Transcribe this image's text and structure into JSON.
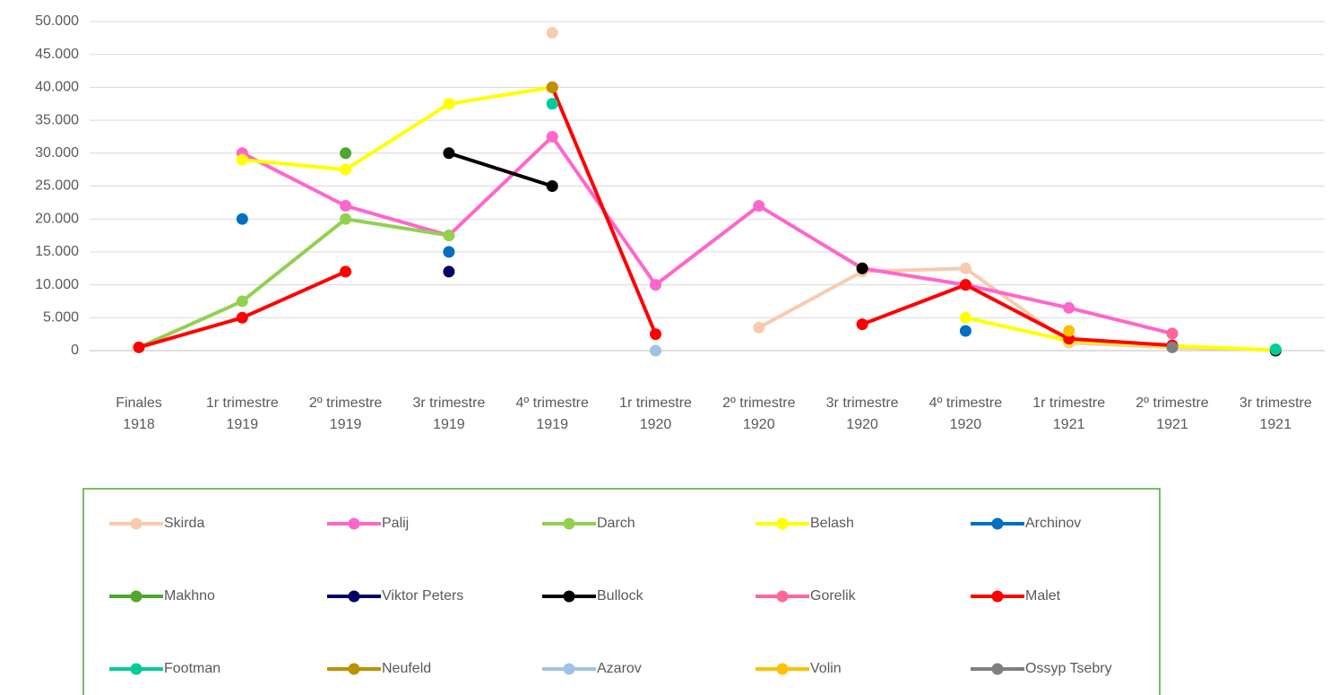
{
  "chart_data": {
    "type": "line",
    "categories": [
      "Finales 1918",
      "1r trimestre 1919",
      "2º trimestre 1919",
      "3r trimestre 1919",
      "4º trimestre 1919",
      "1r trimestre 1920",
      "2º trimestre 1920",
      "3r trimestre 1920",
      "4º trimestre 1920",
      "1r trimestre 1921",
      "2º trimestre 1921",
      "3r trimestre 1921"
    ],
    "ylim": [
      0,
      50000
    ],
    "yticks": [
      0,
      {
        "value": 5000,
        "label": "5.000"
      },
      {
        "value": 10000,
        "label": "10.000"
      },
      {
        "value": 15000,
        "label": "15.000"
      },
      {
        "value": 20000,
        "label": "20.000"
      },
      {
        "value": 25000,
        "label": "25.000"
      },
      {
        "value": 30000,
        "label": "30.000"
      },
      {
        "value": 35000,
        "label": "35.000"
      },
      {
        "value": 40000,
        "label": "40.000"
      },
      {
        "value": 45000,
        "label": "45.000"
      },
      {
        "value": 50000,
        "label": "50.000"
      }
    ],
    "grid": true,
    "legend": "bottom",
    "series": [
      {
        "name": "Skirda",
        "color": "#f8cbad",
        "values": [
          null,
          null,
          null,
          null,
          48300,
          null,
          3500,
          12000,
          12500,
          1200,
          500,
          100
        ]
      },
      {
        "name": "Palij",
        "color": "#ff66cc",
        "values": [
          null,
          30000,
          22000,
          17500,
          32500,
          10000,
          22000,
          12500,
          10000,
          6500,
          2600,
          null
        ]
      },
      {
        "name": "Darch",
        "color": "#92d050",
        "values": [
          500,
          7500,
          20000,
          17500,
          null,
          null,
          null,
          null,
          null,
          null,
          null,
          null
        ]
      },
      {
        "name": "Belash",
        "color": "#ffff00",
        "values": [
          null,
          29000,
          27500,
          37500,
          40000,
          null,
          null,
          null,
          5000,
          1500,
          700,
          100
        ]
      },
      {
        "name": "Archinov",
        "color": "#0070c0",
        "values": [
          null,
          20000,
          null,
          15000,
          null,
          null,
          null,
          null,
          3000,
          null,
          null,
          null
        ]
      },
      {
        "name": "Makhno",
        "color": "#4ea72e",
        "values": [
          null,
          null,
          30000,
          null,
          null,
          null,
          null,
          null,
          null,
          null,
          null,
          null
        ]
      },
      {
        "name": "Viktor Peters",
        "color": "#000066",
        "values": [
          null,
          null,
          null,
          12000,
          null,
          null,
          null,
          null,
          null,
          null,
          null,
          null
        ]
      },
      {
        "name": "Bullock",
        "color": "#000000",
        "values": [
          null,
          null,
          null,
          30000,
          25000,
          null,
          null,
          12500,
          null,
          null,
          null,
          0
        ]
      },
      {
        "name": "Gorelik",
        "color": "#ff6699",
        "values": [
          null,
          null,
          null,
          null,
          null,
          null,
          null,
          null,
          null,
          null,
          2600,
          null
        ]
      },
      {
        "name": "Malet",
        "color": "#ff0000",
        "values": [
          500,
          5000,
          12000,
          null,
          40000,
          2500,
          null,
          4000,
          10000,
          1800,
          800,
          null
        ]
      },
      {
        "name": "Footman",
        "color": "#00cc99",
        "values": [
          null,
          null,
          null,
          null,
          37500,
          null,
          null,
          null,
          null,
          null,
          null,
          200
        ]
      },
      {
        "name": "Neufeld",
        "color": "#bf9000",
        "values": [
          null,
          null,
          null,
          null,
          40000,
          null,
          null,
          null,
          null,
          null,
          null,
          null
        ]
      },
      {
        "name": "Azarov",
        "color": "#9dc3e6",
        "values": [
          null,
          null,
          null,
          null,
          null,
          0,
          null,
          null,
          null,
          null,
          null,
          null
        ]
      },
      {
        "name": "Volin",
        "color": "#ffc000",
        "values": [
          null,
          null,
          null,
          null,
          null,
          null,
          null,
          null,
          null,
          3000,
          null,
          null
        ]
      },
      {
        "name": "Ossyp Tsebry",
        "color": "#7f7f7f",
        "values": [
          null,
          null,
          null,
          null,
          null,
          null,
          null,
          null,
          null,
          null,
          500,
          null
        ]
      }
    ]
  }
}
